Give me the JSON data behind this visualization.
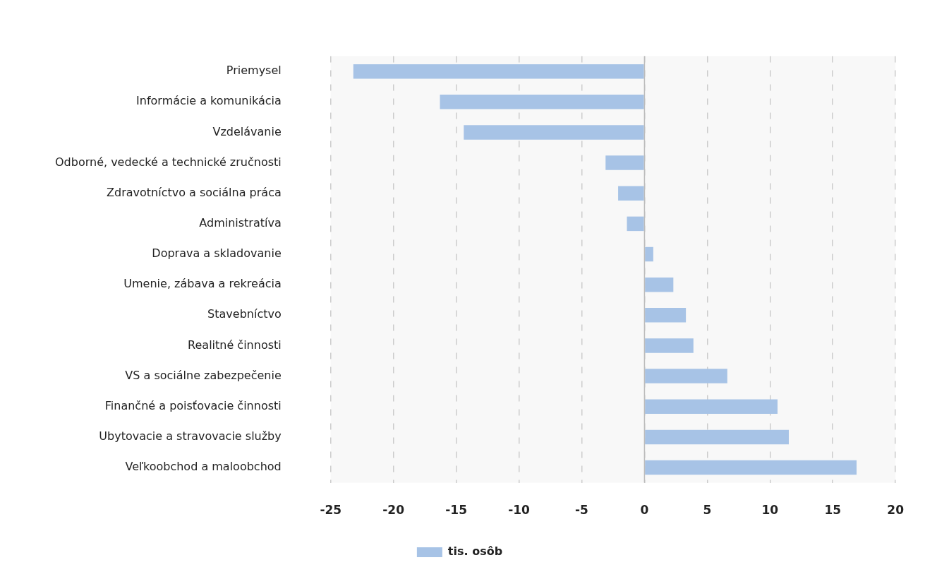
{
  "chart_data": {
    "type": "bar",
    "orientation": "horizontal",
    "categories": [
      "Priemysel",
      "Informácie a komunikácia",
      "Vzdelávanie",
      "Odborné, vedecké a technické zručnosti",
      "Zdravotníctvo a sociálna práca",
      "Administratíva",
      "Doprava a skladovanie",
      "Umenie, zábava a rekreácia",
      "Stavebníctvo",
      "Realitné činnosti",
      "VS a sociálne zabezpečenie",
      "Finančné a poisťovacie činnosti",
      "Ubytovacie a stravovacie služby",
      "Veľkoobchod a maloobchod"
    ],
    "series": [
      {
        "name": "tis. osôb",
        "color": "#a7c3e6",
        "values": [
          -23.2,
          -16.3,
          -14.4,
          -3.1,
          -2.1,
          -1.4,
          0.7,
          2.3,
          3.3,
          3.9,
          6.6,
          10.6,
          11.5,
          16.9
        ]
      }
    ],
    "xlim": [
      -25,
      20
    ],
    "xticks": [
      -25,
      -20,
      -15,
      -10,
      -5,
      0,
      5,
      10,
      15,
      20
    ],
    "grid": "x",
    "legend": "bottom",
    "ref_lines": [
      {
        "axis": "x",
        "value": 0,
        "color": "#bbbbbb",
        "line_style": "solid"
      }
    ]
  }
}
